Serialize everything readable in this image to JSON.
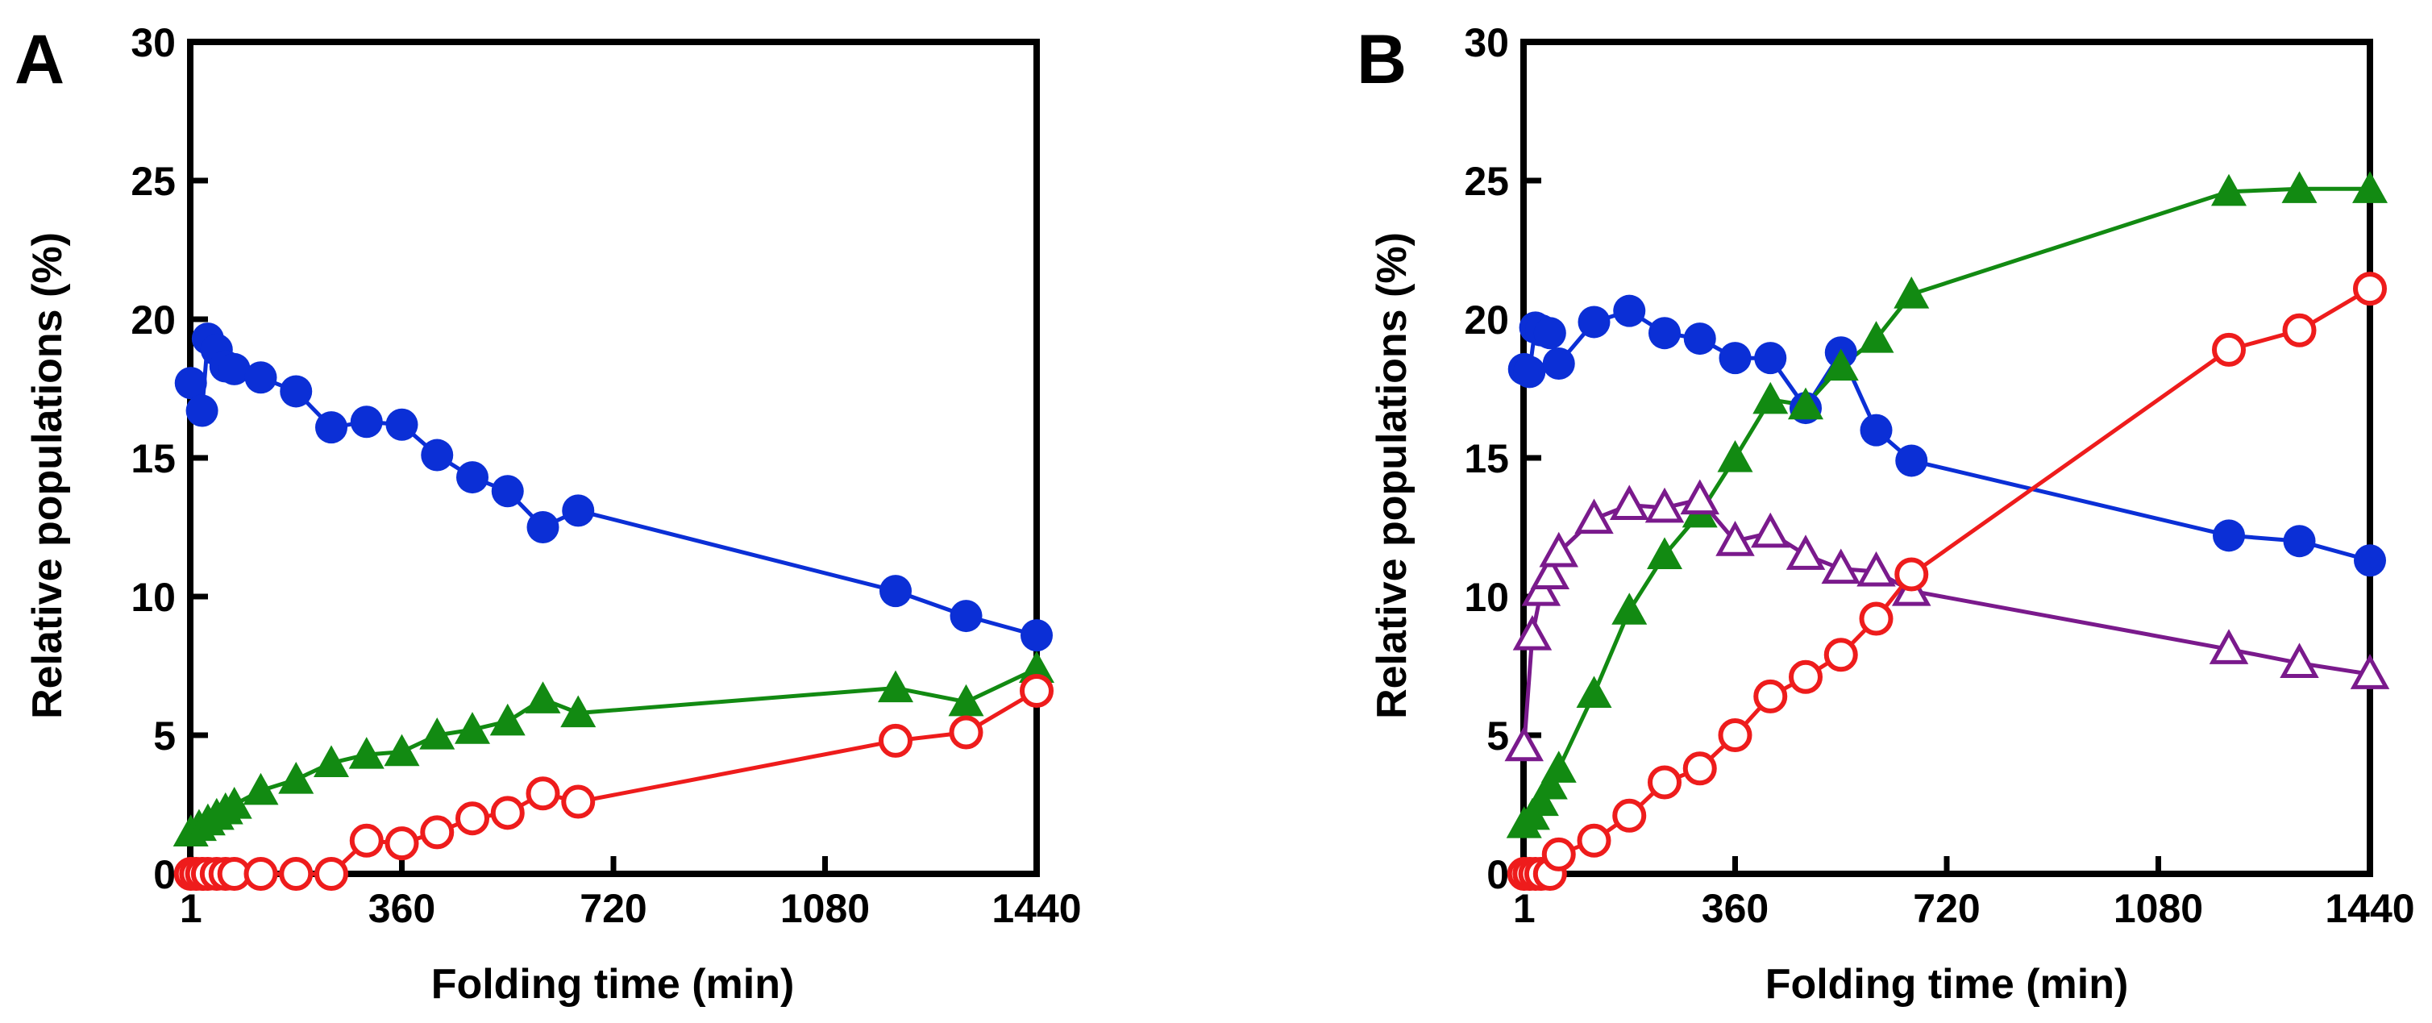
{
  "chart_data": [
    {
      "type": "scatter",
      "panel_label": "A",
      "title": "",
      "xlabel": "Folding time (min)",
      "ylabel": "Relative populations (%)",
      "xlim": [
        0,
        1440
      ],
      "ylim": [
        0,
        30
      ],
      "xticks": [
        1,
        360,
        720,
        1080,
        1440
      ],
      "xtick_labels": [
        "1",
        "360",
        "720",
        "1080",
        "1440"
      ],
      "yticks": [
        0,
        5,
        10,
        15,
        20,
        25,
        30
      ],
      "ytick_labels": [
        "0",
        "5",
        "10",
        "15",
        "20",
        "25",
        "30"
      ],
      "grid": false,
      "series": [
        {
          "name": "blue filled circles",
          "marker": "filled-circle",
          "color": "#0b2fd6",
          "x": [
            1,
            20,
            30,
            45,
            60,
            75,
            120,
            180,
            240,
            300,
            360,
            420,
            480,
            540,
            600,
            660,
            1200,
            1320,
            1440
          ],
          "y": [
            17.7,
            16.7,
            19.3,
            18.9,
            18.3,
            18.2,
            17.9,
            17.4,
            16.1,
            16.3,
            16.2,
            15.1,
            14.3,
            13.8,
            12.5,
            13.1,
            10.2,
            9.3,
            8.6
          ]
        },
        {
          "name": "green filled triangles",
          "marker": "filled-triangle",
          "color": "#128a12",
          "x": [
            1,
            15,
            30,
            45,
            60,
            75,
            120,
            180,
            240,
            300,
            360,
            420,
            480,
            540,
            600,
            660,
            1200,
            1320,
            1440
          ],
          "y": [
            1.5,
            1.7,
            1.9,
            2.1,
            2.3,
            2.5,
            3.0,
            3.4,
            4.0,
            4.3,
            4.4,
            5.0,
            5.2,
            5.5,
            6.3,
            5.8,
            6.7,
            6.2,
            7.4
          ]
        },
        {
          "name": "red open circles",
          "marker": "open-circle",
          "color": "#ee1c1c",
          "x": [
            1,
            10,
            20,
            30,
            45,
            60,
            75,
            120,
            180,
            240,
            300,
            360,
            420,
            480,
            540,
            600,
            660,
            1200,
            1320,
            1440
          ],
          "y": [
            0,
            0,
            0,
            0,
            0,
            0,
            0,
            0,
            0,
            0,
            1.2,
            1.1,
            1.5,
            2.0,
            2.2,
            2.9,
            2.6,
            4.8,
            5.1,
            6.6
          ]
        }
      ]
    },
    {
      "type": "scatter",
      "panel_label": "B",
      "title": "",
      "xlabel": "Folding time (min)",
      "ylabel": "Relative populations (%)",
      "xlim": [
        0,
        1440
      ],
      "ylim": [
        0,
        30
      ],
      "xticks": [
        1,
        360,
        720,
        1080,
        1440
      ],
      "xtick_labels": [
        "1",
        "360",
        "720",
        "1080",
        "1440"
      ],
      "yticks": [
        0,
        5,
        10,
        15,
        20,
        25,
        30
      ],
      "ytick_labels": [
        "0",
        "5",
        "10",
        "15",
        "20",
        "25",
        "30"
      ],
      "grid": false,
      "series": [
        {
          "name": "blue filled circles",
          "marker": "filled-circle",
          "color": "#0b2fd6",
          "x": [
            1,
            10,
            20,
            30,
            45,
            60,
            120,
            180,
            240,
            300,
            360,
            420,
            480,
            540,
            600,
            660,
            1200,
            1320,
            1440
          ],
          "y": [
            18.2,
            18.1,
            19.7,
            19.6,
            19.5,
            18.4,
            19.9,
            20.3,
            19.5,
            19.3,
            18.6,
            18.6,
            16.8,
            18.8,
            16.0,
            14.9,
            12.2,
            12.0,
            11.3
          ]
        },
        {
          "name": "green filled triangles",
          "marker": "filled-triangle",
          "color": "#128a12",
          "x": [
            1,
            15,
            30,
            45,
            60,
            120,
            180,
            240,
            300,
            360,
            420,
            480,
            540,
            600,
            660,
            1200,
            1320,
            1440
          ],
          "y": [
            1.8,
            2.1,
            2.6,
            3.2,
            3.8,
            6.5,
            9.5,
            11.5,
            13.0,
            15.0,
            17.1,
            16.9,
            18.3,
            19.3,
            20.9,
            24.6,
            24.7,
            24.7
          ]
        },
        {
          "name": "purple open triangles",
          "marker": "open-triangle",
          "color": "#7a1a8c",
          "x": [
            1,
            15,
            30,
            45,
            60,
            120,
            180,
            240,
            300,
            360,
            420,
            480,
            540,
            600,
            660,
            1200,
            1320,
            1440
          ],
          "y": [
            4.6,
            8.6,
            10.2,
            10.8,
            11.6,
            12.8,
            13.3,
            13.2,
            13.5,
            12.0,
            12.3,
            11.5,
            11.0,
            10.9,
            10.2,
            8.1,
            7.6,
            7.2
          ]
        },
        {
          "name": "red open circles",
          "marker": "open-circle",
          "color": "#ee1c1c",
          "x": [
            1,
            10,
            20,
            30,
            45,
            60,
            120,
            180,
            240,
            300,
            360,
            420,
            480,
            540,
            600,
            660,
            1200,
            1320,
            1440
          ],
          "y": [
            0,
            0,
            0,
            0,
            0,
            0.7,
            1.2,
            2.1,
            3.3,
            3.8,
            5.0,
            6.4,
            7.1,
            7.9,
            9.2,
            10.8,
            18.9,
            19.6,
            21.1
          ]
        }
      ]
    }
  ]
}
